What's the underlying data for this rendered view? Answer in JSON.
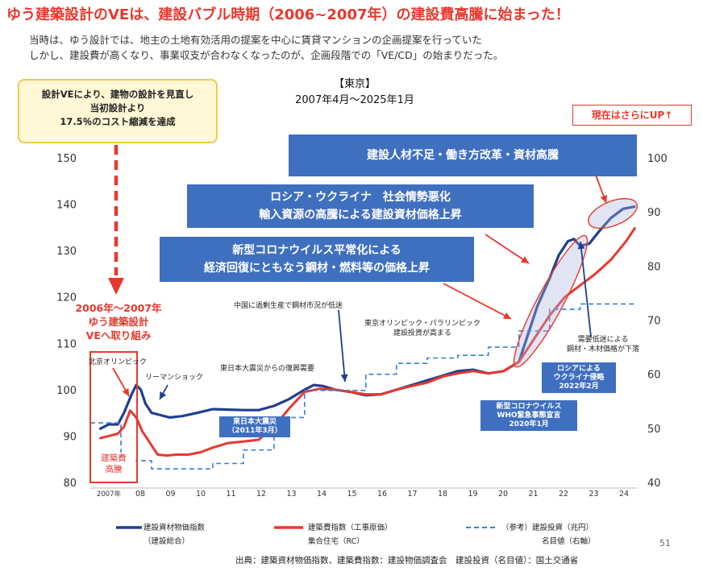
{
  "title": "ゆう建築設計のVEは、建設バブル時期（2006~2007年）の建設費高騰に始まった！",
  "intro": {
    "line1": "当時は、ゆう設計では、地主の土地有効活用の提案を中心に賃貸マンションの企画提案を行っていた",
    "line2": "しかし、建設費が高くなり、事業収支が合わなくなったのが、企画段階での「VE/CD」の始まりだった。"
  },
  "region": {
    "name": "【東京】",
    "period": "2007年4月～2025年1月"
  },
  "ve_box": {
    "line1": "設計VEにより、建物の設計を見直し",
    "line2": "当初設計より",
    "line3": "17.5％のコスト縮減を達成"
  },
  "up_box": "現在はさらにUP↑",
  "banners": {
    "b1": "建設人材不足・働き方改革・資材高騰",
    "b2_line1": "ロシア・ウクライナ　社会情勢悪化",
    "b2_line2": "輸入資源の高騰による建設資材価格上昇",
    "b3_line1": "新型コロナウイルス平常化による",
    "b3_line2": "経済回復にともなう鋼材・燃料等の価格上昇"
  },
  "red_notes": {
    "ve_start_line1": "2006年～2007年",
    "ve_start_line2": "ゆう建築設計",
    "ve_start_line3": "VEへ取り組み",
    "surge_line1": "建築費",
    "surge_line2": "高騰"
  },
  "annotations": {
    "beijing": "北京オリンピック",
    "lehman": "リーマンショック",
    "quake_demand": "東日本大震災からの復興需要",
    "china": "中国に過剰生産で鋼材市況が低迷",
    "tokyo2020_line1": "東京オリンピック・パラリンピック",
    "tokyo2020_line2": "建設投資が高まる",
    "demand_line1": "需要低迷による",
    "demand_line2": "鋼材・木材価格が下落"
  },
  "tags": {
    "quake_line1": "東日本大震災",
    "quake_line2": "（2011年3月）",
    "covid_line1": "新型コロナウイルス",
    "covid_line2": "WHO緊急事態宣言",
    "covid_line3": "2020年1月",
    "russia_line1": "ロシアによる",
    "russia_line2": "ウクライナ侵略",
    "russia_line3": "2022年2月"
  },
  "legend": {
    "material_line1": "建設資材物価指数",
    "material_line2": "（建設総合）",
    "cost_line1": "建築費指数（工事原価）",
    "cost_line2": "集合住宅（RC）",
    "invest_line1": "（参考）建設投資（兆円）",
    "invest_line2": "名目値（右軸）"
  },
  "source": "出典：建築資材物価指数、建築費指数：建設物価調査会　建設投資（名目値）：国土交通省",
  "page_number": "51",
  "colors": {
    "accent_red": "#e8382e",
    "material_line": "#1f3f8f",
    "cost_line": "#e8382e",
    "invest_line": "#3a7fd5",
    "banner_blue": "#3f6fbf"
  },
  "chart_data": {
    "type": "line",
    "x_tick_labels": [
      "2007年",
      "08",
      "09",
      "10",
      "11",
      "12",
      "13",
      "14",
      "15",
      "16",
      "17",
      "18",
      "19",
      "20",
      "21",
      "22",
      "23",
      "24"
    ],
    "ylim_left": [
      80,
      150
    ],
    "yticks_left": [
      80,
      90,
      100,
      110,
      120,
      130,
      140,
      150
    ],
    "ylim_right": [
      40,
      100
    ],
    "yticks_right": [
      40,
      50,
      60,
      70,
      80,
      90,
      100
    ],
    "grid": false,
    "legend_position": "bottom",
    "series": [
      {
        "name": "建設資材物価指数（建設総合）",
        "axis": "left",
        "style": "solid",
        "x": [
          2007.3,
          2007.6,
          2007.9,
          2008.1,
          2008.35,
          2008.5,
          2008.65,
          2008.8,
          2009.0,
          2009.3,
          2009.6,
          2010.0,
          2010.5,
          2011.0,
          2011.5,
          2012.0,
          2012.5,
          2013.0,
          2013.5,
          2014.0,
          2014.3,
          2014.6,
          2015.0,
          2015.5,
          2016.0,
          2016.5,
          2017.0,
          2017.5,
          2018.0,
          2018.5,
          2019.0,
          2019.5,
          2020.0,
          2020.5,
          2021.0,
          2021.3,
          2021.6,
          2022.0,
          2022.3,
          2022.6,
          2022.8,
          2023.0,
          2023.3,
          2023.6,
          2024.0,
          2024.4,
          2024.8
        ],
        "values": [
          91.5,
          92.5,
          92.5,
          95,
          99,
          101,
          100,
          97,
          95,
          94.5,
          94,
          94.3,
          95,
          95.8,
          95.7,
          95.6,
          95.6,
          96.5,
          98,
          100,
          101,
          100.8,
          100,
          99.5,
          98.8,
          99,
          100,
          101,
          102,
          103,
          104,
          104.3,
          103.5,
          104,
          106,
          112,
          118,
          124,
          129,
          132,
          132.5,
          131,
          131.5,
          134,
          137,
          139,
          139.5
        ]
      },
      {
        "name": "建築費指数（工事原価）集合住宅（RC）",
        "axis": "left",
        "style": "solid",
        "x": [
          2007.3,
          2007.6,
          2007.9,
          2008.1,
          2008.3,
          2008.5,
          2008.7,
          2008.9,
          2009.2,
          2009.5,
          2009.8,
          2010.2,
          2010.6,
          2011.0,
          2011.5,
          2012.0,
          2012.5,
          2013.0,
          2013.5,
          2014.0,
          2014.5,
          2015.0,
          2015.5,
          2016.0,
          2016.5,
          2017.0,
          2017.5,
          2018.0,
          2018.5,
          2019.0,
          2019.5,
          2020.0,
          2020.5,
          2021.0,
          2021.5,
          2022.0,
          2022.5,
          2023.0,
          2023.5,
          2024.0,
          2024.5,
          2024.8
        ],
        "values": [
          89.5,
          90,
          90.5,
          92,
          95.5,
          94,
          91,
          89,
          86,
          85.8,
          86,
          86,
          86.5,
          87.5,
          88.5,
          88.8,
          89.2,
          92,
          96,
          99.5,
          100.2,
          100,
          99.5,
          99,
          99,
          100,
          100.8,
          101.5,
          102.8,
          103.5,
          104,
          103.5,
          104,
          106,
          111,
          116,
          120,
          122.5,
          125,
          128,
          132,
          135
        ]
      },
      {
        "name": "（参考）建設投資（兆円）名目値（右軸）",
        "axis": "right",
        "style": "dashed",
        "x": [
          2007.0,
          2008.0,
          2008.0,
          2009.0,
          2009.0,
          2010.0,
          2010.0,
          2011.0,
          2011.0,
          2012.0,
          2012.0,
          2013.0,
          2013.0,
          2014.0,
          2014.0,
          2015.0,
          2015.0,
          2016.0,
          2016.0,
          2017.0,
          2017.0,
          2018.0,
          2018.0,
          2019.0,
          2019.0,
          2020.0,
          2020.0,
          2021.0,
          2021.0,
          2022.0,
          2022.0,
          2023.0,
          2023.0,
          2024.0,
          2024.0,
          2024.8
        ],
        "values": [
          51,
          51,
          44,
          44,
          42.5,
          42.5,
          42.5,
          42.5,
          43.5,
          43.5,
          46,
          46,
          52,
          52,
          57,
          57,
          57,
          57,
          60,
          60,
          62,
          62,
          63,
          63,
          63.5,
          63.5,
          65,
          65,
          68,
          68,
          72,
          72,
          73,
          73,
          73,
          73
        ]
      }
    ]
  }
}
